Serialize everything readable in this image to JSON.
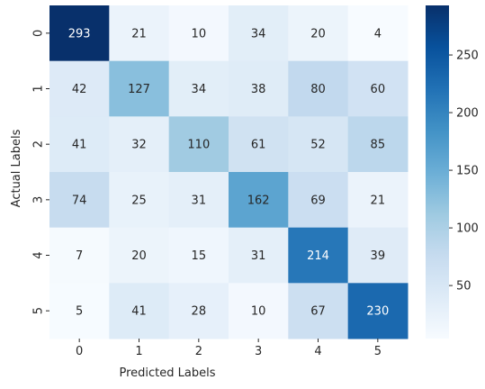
{
  "chart_data": {
    "type": "heatmap",
    "title": "",
    "xlabel": "Predicted Labels",
    "ylabel": "Actual Labels",
    "x_categories": [
      "0",
      "1",
      "2",
      "3",
      "4",
      "5"
    ],
    "y_categories": [
      "0",
      "1",
      "2",
      "3",
      "4",
      "5"
    ],
    "values": [
      [
        293,
        21,
        10,
        34,
        20,
        4
      ],
      [
        42,
        127,
        34,
        38,
        80,
        60
      ],
      [
        41,
        32,
        110,
        61,
        52,
        85
      ],
      [
        74,
        25,
        31,
        162,
        69,
        21
      ],
      [
        7,
        20,
        15,
        31,
        214,
        39
      ],
      [
        5,
        41,
        28,
        10,
        67,
        230
      ]
    ],
    "colormap": "Blues",
    "value_range": [
      4,
      293
    ],
    "colorbar_ticks": [
      "50",
      "100",
      "150",
      "200",
      "250"
    ],
    "colors": {
      "low": "#f7fbff",
      "high": "#08306b"
    }
  }
}
